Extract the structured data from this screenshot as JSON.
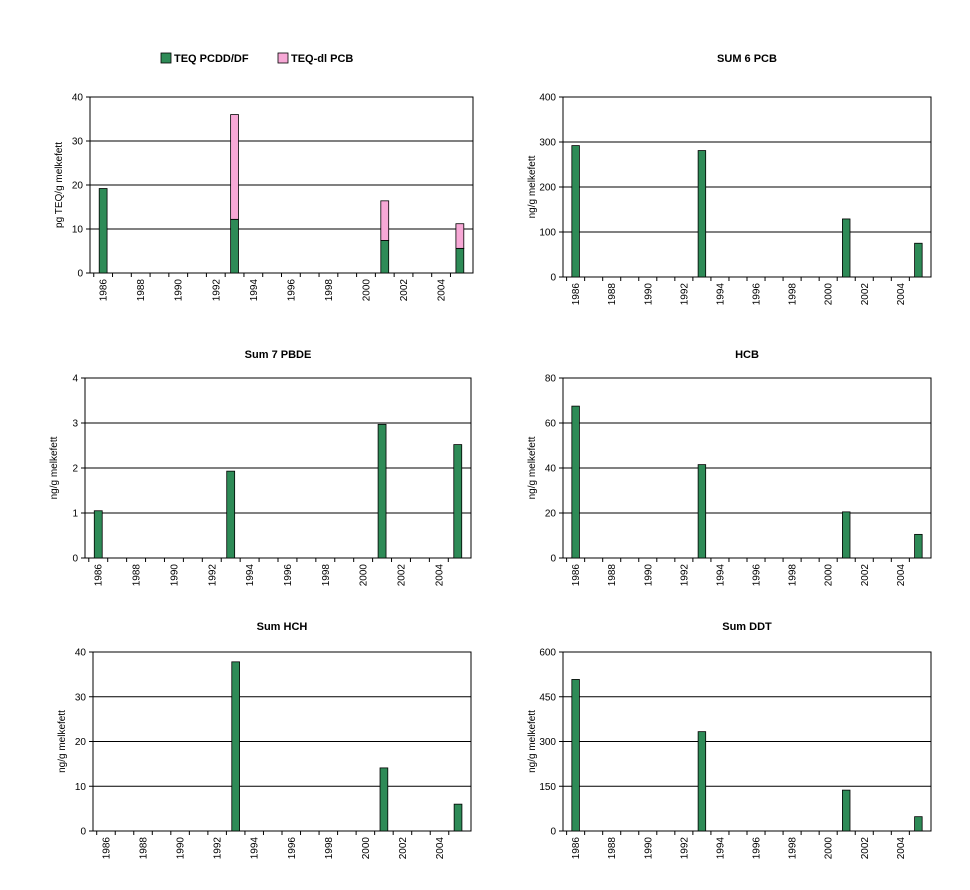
{
  "colors": {
    "pcdd": "#2e8b57",
    "dlpcb": "#f7a8d6",
    "text": "#000000",
    "background": "#ffffff"
  },
  "legend": {
    "position": "top",
    "entries": [
      {
        "label": "TEQ PCDD/DF",
        "color": "#2e8b57"
      },
      {
        "label": "TEQ-dl PCB",
        "color": "#f7a8d6"
      }
    ]
  },
  "x_ticks": [
    "1986",
    "1988",
    "1990",
    "1992",
    "1994",
    "1996",
    "1998",
    "2000",
    "2002",
    "2004"
  ],
  "chart_data": [
    {
      "type": "bar",
      "stacked": true,
      "title": "",
      "ylabel": "pg TEQ/g melkefett",
      "ylim": [
        0,
        40
      ],
      "yticks": [
        0,
        10,
        20,
        30,
        40
      ],
      "grid": true,
      "x": [
        1986,
        1993,
        2001,
        2005
      ],
      "series": [
        {
          "name": "TEQ PCDD/DF",
          "color": "#2e8b57",
          "values": [
            19.2,
            12.2,
            7.4,
            5.6
          ]
        },
        {
          "name": "TEQ-dl PCB",
          "color": "#f7a8d6",
          "values": [
            0,
            23.8,
            9.0,
            5.6
          ]
        }
      ]
    },
    {
      "type": "bar",
      "title": "SUM 6 PCB",
      "ylabel": "ng/g melkefett",
      "ylim": [
        0,
        400
      ],
      "yticks": [
        0,
        100,
        200,
        300,
        400
      ],
      "grid": true,
      "x": [
        1986,
        1993,
        2001,
        2005
      ],
      "series": [
        {
          "values": [
            292,
            281,
            129,
            75
          ]
        }
      ]
    },
    {
      "type": "bar",
      "title": "Sum 7 PBDE",
      "ylabel": "ng/g melkefett",
      "ylim": [
        0,
        4
      ],
      "yticks": [
        0,
        1,
        2,
        3,
        4
      ],
      "grid": true,
      "x": [
        1986,
        1993,
        2001,
        2005
      ],
      "series": [
        {
          "values": [
            1.05,
            1.93,
            2.97,
            2.52
          ]
        }
      ]
    },
    {
      "type": "bar",
      "title": "HCB",
      "ylabel": "ng/g melkefett",
      "ylim": [
        0,
        80
      ],
      "yticks": [
        0,
        20,
        40,
        60,
        80
      ],
      "grid": true,
      "x": [
        1986,
        1993,
        2001,
        2005
      ],
      "series": [
        {
          "values": [
            67.5,
            41.5,
            20.5,
            10.5
          ]
        }
      ]
    },
    {
      "type": "bar",
      "title": "Sum HCH",
      "ylabel": "ng/g melkefett",
      "ylim": [
        0,
        40
      ],
      "yticks": [
        0,
        10,
        20,
        30,
        40
      ],
      "grid": true,
      "x": [
        1986,
        1993,
        2001,
        2005
      ],
      "series": [
        {
          "values": [
            0,
            37.8,
            14.1,
            6.0
          ]
        }
      ]
    },
    {
      "type": "bar",
      "title": "Sum DDT",
      "ylabel": "ng/g melkefett",
      "ylim": [
        0,
        600
      ],
      "yticks": [
        0,
        150,
        300,
        450,
        600
      ],
      "grid": true,
      "x": [
        1986,
        1993,
        2001,
        2005
      ],
      "series": [
        {
          "values": [
            508,
            333,
            137,
            48
          ]
        }
      ]
    }
  ]
}
